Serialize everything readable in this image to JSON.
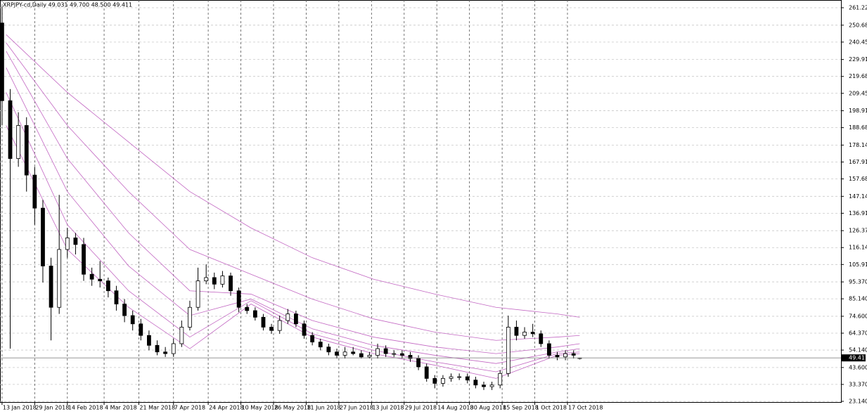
{
  "chart_data": {
    "type": "candlestick",
    "title": "XRPJPY-cd,Daily  49.031 49.700 48.500 49.411",
    "xlim": [
      "2018-01-12",
      "2019-02-28"
    ],
    "xticks": [
      "13 Jan 2018",
      "29 Jan 2018",
      "14 Feb 2018",
      "4 Mar 2018",
      "21 Mar 2018",
      "7 Apr 2018",
      "24 Apr 2018",
      "10 May 2018",
      "26 May 2018",
      "11 Jun 2018",
      "27 Jun 2018",
      "13 Jul 2018",
      "29 Jul 2018",
      "14 Aug 2018",
      "30 Aug 2018",
      "15 Sep 2018",
      "1 Oct 2018",
      "17 Oct 2018"
    ],
    "ylim": [
      22.7,
      265.9
    ],
    "yticks": [
      {
        "value": 261.22,
        "label": "261.220"
      },
      {
        "value": 250.68,
        "label": "250.680"
      },
      {
        "value": 240.45,
        "label": "240.450"
      },
      {
        "value": 229.91,
        "label": "229.910"
      },
      {
        "value": 219.68,
        "label": "219.680"
      },
      {
        "value": 209.45,
        "label": "209.450"
      },
      {
        "value": 198.91,
        "label": "198.910"
      },
      {
        "value": 188.68,
        "label": "188.680"
      },
      {
        "value": 178.14,
        "label": "178.140"
      },
      {
        "value": 167.91,
        "label": "167.910"
      },
      {
        "value": 157.68,
        "label": "157.680"
      },
      {
        "value": 147.14,
        "label": "147.140"
      },
      {
        "value": 136.91,
        "label": "136.910"
      },
      {
        "value": 126.37,
        "label": "126.370"
      },
      {
        "value": 116.14,
        "label": "116.140"
      },
      {
        "value": 105.91,
        "label": "105.910"
      },
      {
        "value": 95.37,
        "label": "95.370"
      },
      {
        "value": 85.14,
        "label": "85.140"
      },
      {
        "value": 74.6,
        "label": "74.600"
      },
      {
        "value": 64.37,
        "label": "64.370"
      },
      {
        "value": 54.14,
        "label": "54.140"
      },
      {
        "value": 43.6,
        "label": "43.600"
      },
      {
        "value": 33.37,
        "label": "33.370"
      },
      {
        "value": 23.14,
        "label": "23.140"
      }
    ],
    "grid": true,
    "last_price": {
      "value": 49.411,
      "label": "49.411"
    },
    "candle_color": "#000000",
    "candles": {
      "x": [
        "2018-01-13",
        "2018-01-17",
        "2018-01-21",
        "2018-01-25",
        "2018-01-29",
        "2018-02-02",
        "2018-02-06",
        "2018-02-10",
        "2018-02-14",
        "2018-02-18",
        "2018-02-22",
        "2018-02-26",
        "2018-03-02",
        "2018-03-06",
        "2018-03-10",
        "2018-03-14",
        "2018-03-18",
        "2018-03-22",
        "2018-03-26",
        "2018-03-30",
        "2018-04-03",
        "2018-04-07",
        "2018-04-11",
        "2018-04-15",
        "2018-04-19",
        "2018-04-23",
        "2018-04-27",
        "2018-05-01",
        "2018-05-05",
        "2018-05-09",
        "2018-05-13",
        "2018-05-17",
        "2018-05-21",
        "2018-05-25",
        "2018-05-29",
        "2018-06-02",
        "2018-06-06",
        "2018-06-10",
        "2018-06-14",
        "2018-06-18",
        "2018-06-22",
        "2018-06-26",
        "2018-06-30",
        "2018-07-04",
        "2018-07-08",
        "2018-07-12",
        "2018-07-16",
        "2018-07-20",
        "2018-07-24",
        "2018-07-28",
        "2018-08-01",
        "2018-08-05",
        "2018-08-09",
        "2018-08-13",
        "2018-08-17",
        "2018-08-21",
        "2018-08-25",
        "2018-08-29",
        "2018-09-02",
        "2018-09-06",
        "2018-09-10",
        "2018-09-14",
        "2018-09-18",
        "2018-09-22",
        "2018-09-26",
        "2018-09-30",
        "2018-10-04",
        "2018-10-08",
        "2018-10-12",
        "2018-10-16",
        "2018-10-20",
        "2018-10-23"
      ],
      "open": [
        252,
        205,
        170,
        190,
        160,
        140,
        105,
        80,
        115,
        122,
        118,
        100,
        97,
        96,
        90,
        82,
        75,
        70,
        63,
        57,
        53,
        52,
        58,
        68,
        80,
        96,
        98,
        94,
        99,
        90,
        80,
        78,
        74,
        68,
        66,
        72,
        76,
        70,
        63,
        59,
        56,
        53,
        51,
        53,
        52,
        50,
        51,
        55,
        52,
        52,
        51,
        49,
        44,
        37,
        34,
        37,
        38,
        38,
        36,
        33,
        32,
        33,
        40,
        68,
        63,
        65,
        64,
        58,
        51,
        50,
        52,
        49.031
      ],
      "high": [
        262,
        212,
        198,
        195,
        165,
        145,
        110,
        148,
        128,
        125,
        122,
        104,
        108,
        98,
        93,
        85,
        78,
        73,
        66,
        60,
        56,
        61,
        72,
        84,
        104,
        106,
        101,
        102,
        101,
        92,
        82,
        80,
        76,
        70,
        75,
        79,
        78,
        72,
        65,
        61,
        58,
        55,
        56,
        56,
        54,
        53,
        58,
        57,
        54,
        54,
        53,
        51,
        46,
        39,
        39,
        40,
        40,
        40,
        38,
        35,
        35,
        42,
        75,
        72,
        68,
        70,
        66,
        60,
        53,
        54,
        54,
        49.7
      ],
      "low": [
        190,
        55,
        165,
        150,
        130,
        95,
        60,
        76,
        110,
        112,
        96,
        93,
        92,
        86,
        78,
        71,
        66,
        60,
        54,
        51,
        50,
        50,
        56,
        66,
        78,
        94,
        91,
        92,
        87,
        77,
        76,
        72,
        66,
        64,
        64,
        70,
        68,
        61,
        57,
        54,
        51,
        49,
        49,
        51,
        49,
        49,
        49,
        50,
        50,
        49,
        47,
        42,
        35,
        31,
        32,
        35,
        36,
        34,
        31,
        30,
        30,
        31,
        38,
        60,
        61,
        62,
        56,
        49,
        48,
        48,
        49,
        48.5
      ],
      "close": [
        205,
        170,
        190,
        160,
        140,
        105,
        80,
        115,
        122,
        118,
        100,
        97,
        96,
        90,
        82,
        75,
        70,
        63,
        57,
        53,
        52,
        58,
        68,
        80,
        96,
        98,
        94,
        99,
        90,
        80,
        78,
        74,
        68,
        66,
        72,
        76,
        70,
        63,
        59,
        56,
        53,
        51,
        53,
        52,
        50,
        51,
        55,
        52,
        52,
        51,
        49,
        44,
        37,
        34,
        37,
        38,
        38,
        36,
        33,
        32,
        33,
        40,
        68,
        63,
        65,
        64,
        58,
        51,
        50,
        52,
        51,
        49.411
      ]
    },
    "ma_color": "#c266c2",
    "ma_x": [
      "2018-01-15",
      "2018-02-14",
      "2018-03-16",
      "2018-04-15",
      "2018-05-15",
      "2018-06-14",
      "2018-07-14",
      "2018-08-13",
      "2018-09-12",
      "2018-10-12",
      "2018-10-23"
    ],
    "ma": [
      {
        "values": [
          245,
          210,
          180,
          150,
          128,
          110,
          97,
          88,
          80,
          76,
          74
        ]
      },
      {
        "values": [
          240,
          190,
          150,
          115,
          100,
          85,
          73,
          65,
          60,
          62,
          63
        ]
      },
      {
        "values": [
          235,
          170,
          125,
          90,
          88,
          72,
          62,
          56,
          52,
          56,
          58
        ]
      },
      {
        "values": [
          225,
          150,
          105,
          75,
          85,
          67,
          57,
          51,
          46,
          53,
          55
        ]
      },
      {
        "values": [
          210,
          130,
          90,
          62,
          84,
          64,
          54,
          47,
          41,
          52,
          53
        ]
      },
      {
        "values": [
          190,
          115,
          80,
          55,
          82,
          62,
          52,
          45,
          37,
          51,
          52
        ]
      }
    ]
  }
}
